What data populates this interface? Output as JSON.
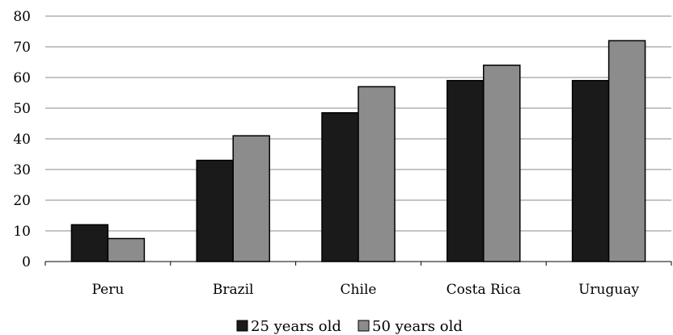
{
  "chart_data": {
    "type": "bar",
    "categories": [
      "Peru",
      "Brazil",
      "Chile",
      "Costa Rica",
      "Uruguay"
    ],
    "series": [
      {
        "name": "25 years old",
        "color": "#1a1a1a",
        "values": [
          12,
          33,
          48.5,
          59,
          59
        ]
      },
      {
        "name": "50 years old",
        "color": "#8c8c8c",
        "values": [
          7.5,
          41,
          57,
          64,
          72
        ]
      }
    ],
    "title": "",
    "xlabel": "",
    "ylabel": "",
    "ylim": [
      0,
      80
    ],
    "yticks": [
      0,
      10,
      20,
      30,
      40,
      50,
      60,
      70,
      80
    ],
    "grid": true,
    "legend_position": "bottom"
  }
}
